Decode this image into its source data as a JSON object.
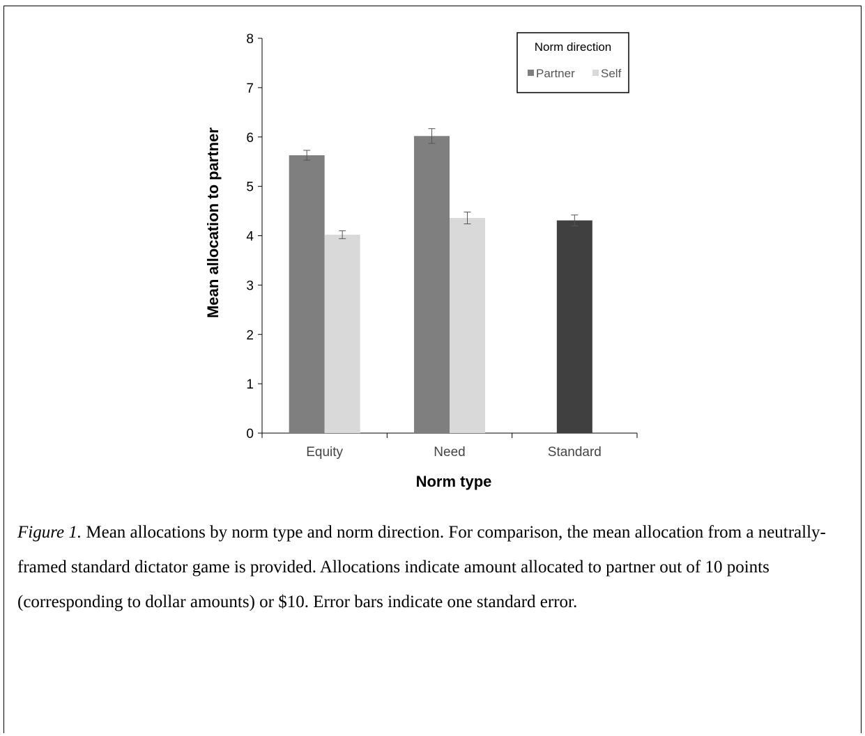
{
  "chart_data": {
    "type": "bar",
    "categories": [
      "Equity",
      "Need",
      "Standard"
    ],
    "series": [
      {
        "name": "Partner",
        "values": [
          5.63,
          6.02,
          null
        ],
        "errors": [
          0.1,
          0.15,
          null
        ],
        "color": "#7f7f7f"
      },
      {
        "name": "Self",
        "values": [
          4.02,
          4.36,
          null
        ],
        "errors": [
          0.08,
          0.12,
          null
        ],
        "color": "#d9d9d9"
      },
      {
        "name": "",
        "values": [
          null,
          null,
          4.31
        ],
        "errors": [
          null,
          null,
          0.11
        ],
        "color": "#404040"
      }
    ],
    "xlabel": "Norm type",
    "ylabel": "Mean allocation to partner",
    "ylim": [
      0,
      8
    ],
    "yticks": [
      "0",
      "1",
      "2",
      "3",
      "4",
      "5",
      "6",
      "7",
      "8"
    ],
    "grid": false,
    "legend": {
      "title": "Norm direction",
      "position": "top-right",
      "entries": [
        "Partner",
        "Self"
      ]
    }
  },
  "caption": {
    "label": "Figure 1.",
    "text": " Mean allocations by norm type and norm direction. For comparison, the mean allocation from a neutrally-framed standard dictator game is provided. Allocations indicate amount allocated to partner out of 10 points (corresponding to dollar amounts) or $10. Error bars indicate one standard error."
  }
}
